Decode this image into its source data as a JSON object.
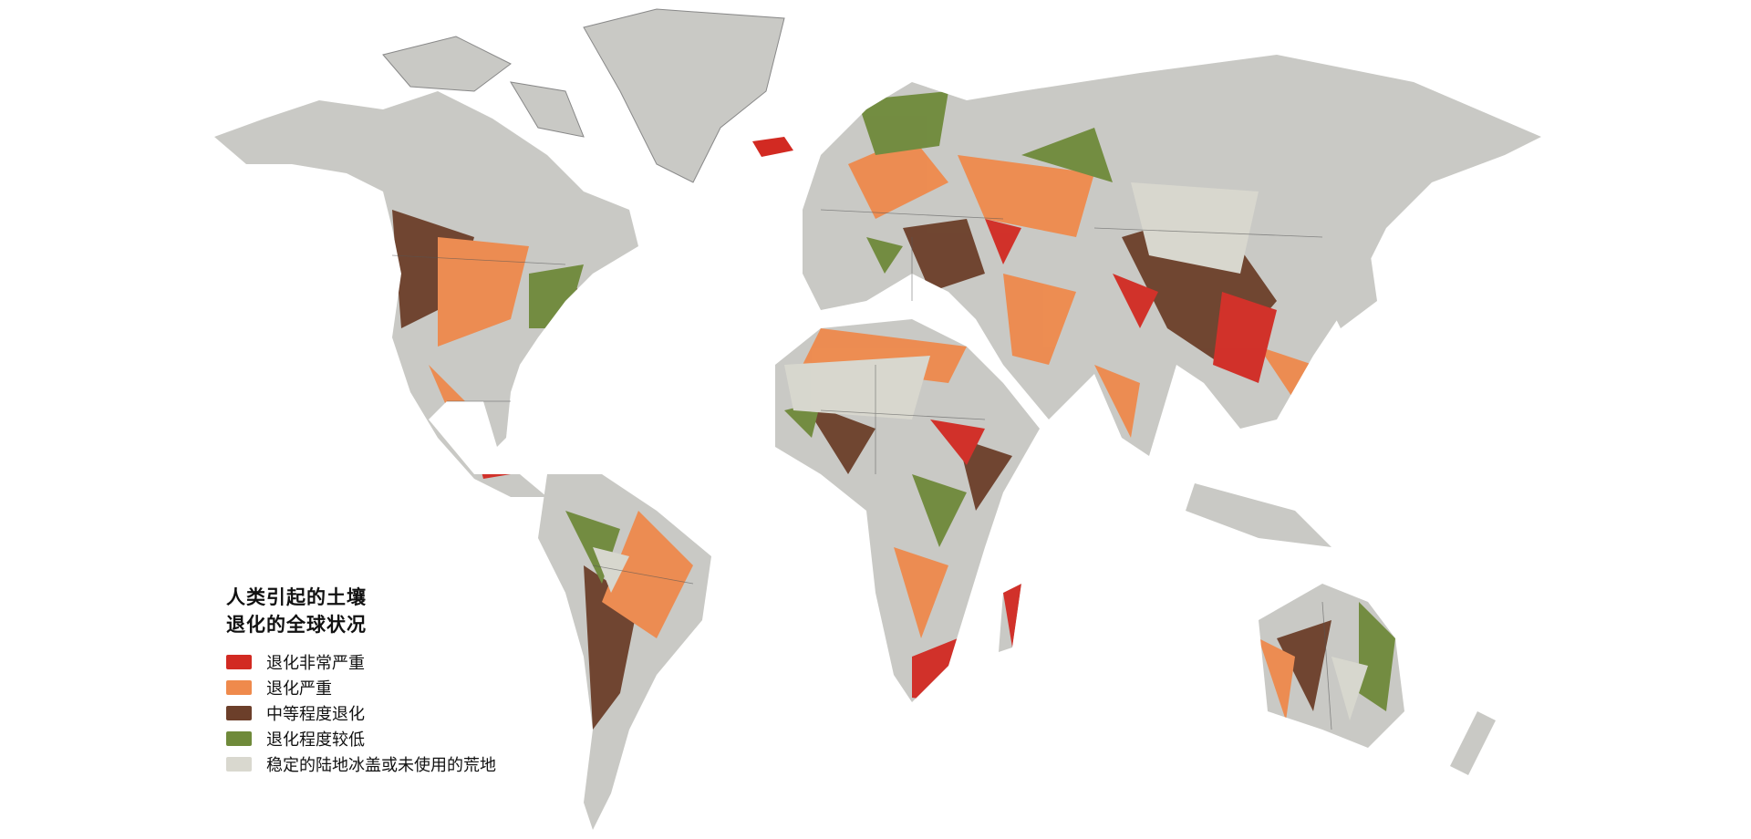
{
  "legend": {
    "title_line1": "人类引起的土壤",
    "title_line2": "退化的全球状况",
    "items": [
      {
        "label": "退化非常严重",
        "color": "#d22a22"
      },
      {
        "label": "退化严重",
        "color": "#ef8a4c"
      },
      {
        "label": "中等程度退化",
        "color": "#6c3f2a"
      },
      {
        "label": "退化程度较低",
        "color": "#6f8a3a"
      },
      {
        "label": "稳定的陆地冰盖或未使用的荒地",
        "color": "#d9d8cf"
      }
    ]
  },
  "colors": {
    "ice_land": "#c9c9c5",
    "border": "#555555",
    "background": "#ffffff"
  }
}
